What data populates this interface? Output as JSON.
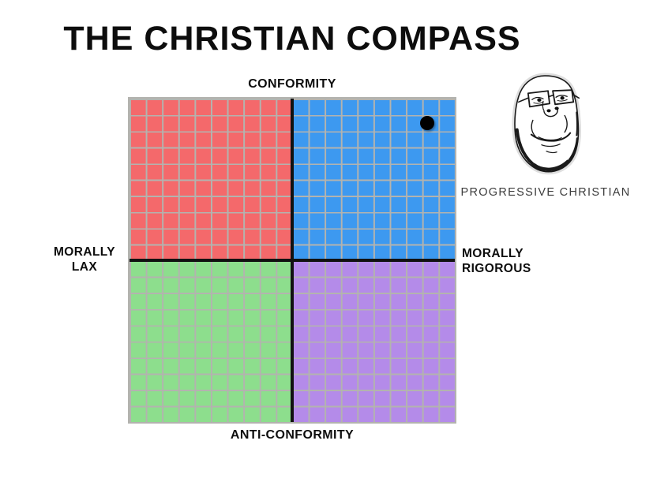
{
  "title": "THE CHRISTIAN COMPASS",
  "axis_labels": {
    "top": "CONFORMITY",
    "bottom": "ANTI-CONFORMITY",
    "left_lines": [
      "MORALLY",
      "LAX"
    ],
    "right_lines": [
      "MORALLY",
      "RIGOROUS"
    ]
  },
  "annotation": {
    "label": "PROGRESSIVE CHRISTIAN",
    "icon": "smiling-wojak-face-with-glasses-icon"
  },
  "colors": {
    "background": "#ffffff",
    "title_text": "#0d0d0d",
    "axis_line": "#111111",
    "grid_line": "#b3b3af",
    "annotation_text": "#3d3d3d"
  },
  "chart_data": {
    "type": "scatter",
    "title": "THE CHRISTIAN COMPASS",
    "x_axis": {
      "left_label": "MORALLY LAX",
      "right_label": "MORALLY RIGOROUS",
      "range": [
        -10,
        10
      ]
    },
    "y_axis": {
      "top_label": "CONFORMITY",
      "bottom_label": "ANTI-CONFORMITY",
      "range": [
        -10,
        10
      ]
    },
    "grid": {
      "cells_per_quadrant": 10,
      "line_color": "#b3b3af",
      "grid_on": true
    },
    "quadrants": [
      {
        "position": "top-left",
        "color": "#f4696b"
      },
      {
        "position": "top-right",
        "color": "#3d99f0"
      },
      {
        "position": "bottom-left",
        "color": "#8dde8d"
      },
      {
        "position": "bottom-right",
        "color": "#b48be9"
      }
    ],
    "points": [
      {
        "label": "PROGRESSIVE CHRISTIAN",
        "x": 8.3,
        "y": 8.5,
        "color": "#000000",
        "radius_px": 9
      }
    ],
    "legend_position": "none"
  }
}
